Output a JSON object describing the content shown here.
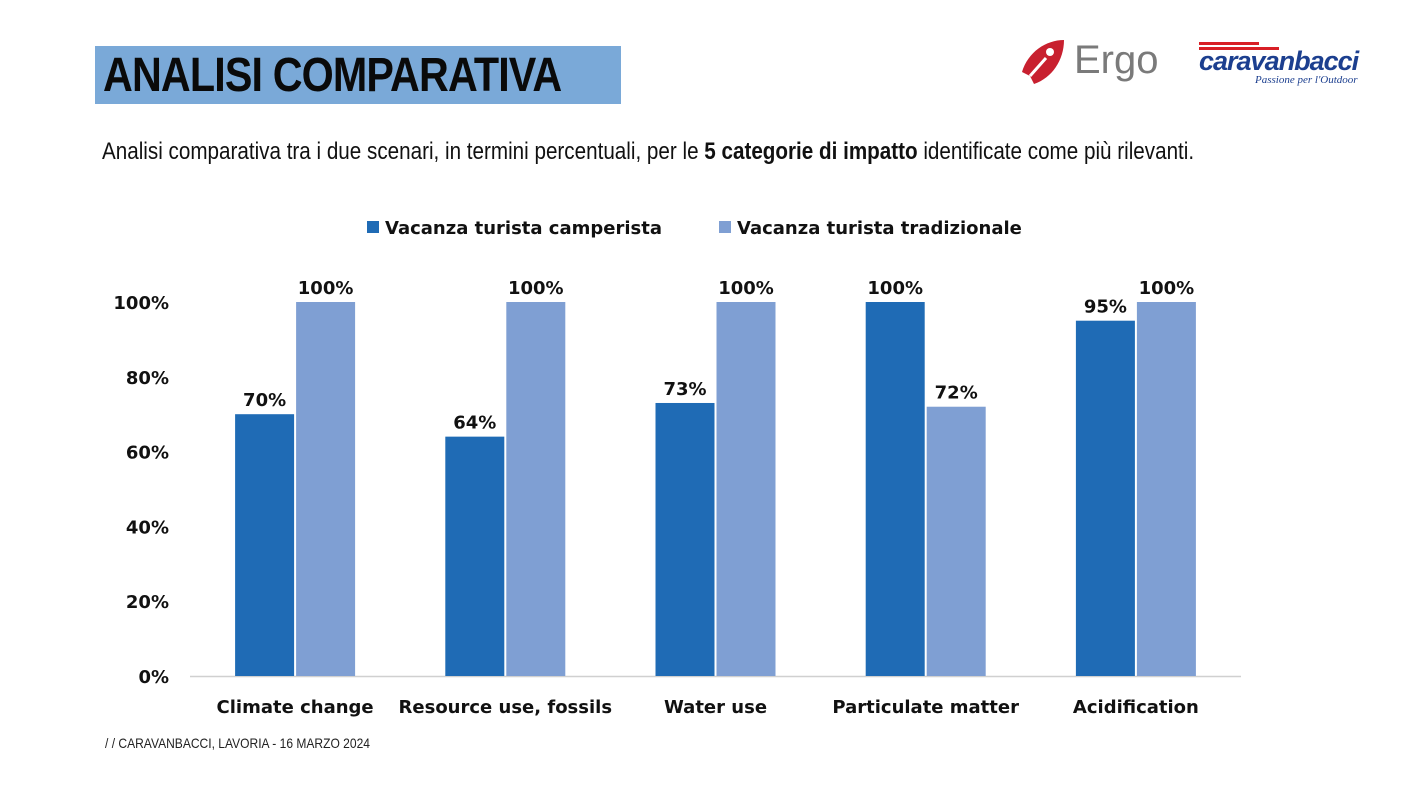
{
  "header": {
    "title": "ANALISI COMPARATIVA",
    "subtitle_pre": "Analisi comparativa tra i due scenari, in termini percentuali, per le ",
    "subtitle_bold": "5 categorie di impatto",
    "subtitle_post": " identificate come più rilevanti."
  },
  "logos": {
    "ergo": "Ergo",
    "ergo_color": "#c8202f",
    "caravanbacci_name": "caravanbacci",
    "caravanbacci_tagline": "Passione per l'Outdoor",
    "caravanbacci_color": "#1c3f8f",
    "caravanbacci_accent": "#d81f26"
  },
  "footer": "/ /  CARAVANBACCI, LAVORIA - 16 MARZO 2024",
  "chart_data": {
    "type": "bar",
    "title": "",
    "xlabel": "",
    "ylabel": "",
    "categories": [
      "Climate change",
      "Resource use, fossils",
      "Water use",
      "Particulate matter",
      "Acidification"
    ],
    "series": [
      {
        "name": "Vacanza turista camperista",
        "color": "#1f6bb5",
        "values": [
          70,
          64,
          73,
          100,
          95
        ],
        "labels": [
          "70%",
          "64%",
          "73%",
          "100%",
          "95%"
        ]
      },
      {
        "name": "Vacanza turista tradizionale",
        "color": "#7f9fd3",
        "values": [
          100,
          100,
          100,
          72,
          100
        ],
        "labels": [
          "100%",
          "100%",
          "100%",
          "72%",
          "100%"
        ]
      }
    ],
    "ylim": [
      0,
      100
    ],
    "yticks": [
      "0%",
      "20%",
      "40%",
      "60%",
      "80%",
      "100%"
    ],
    "ytick_values": [
      0,
      20,
      40,
      60,
      80,
      100
    ],
    "legend_position": "top-center",
    "grid": false
  }
}
